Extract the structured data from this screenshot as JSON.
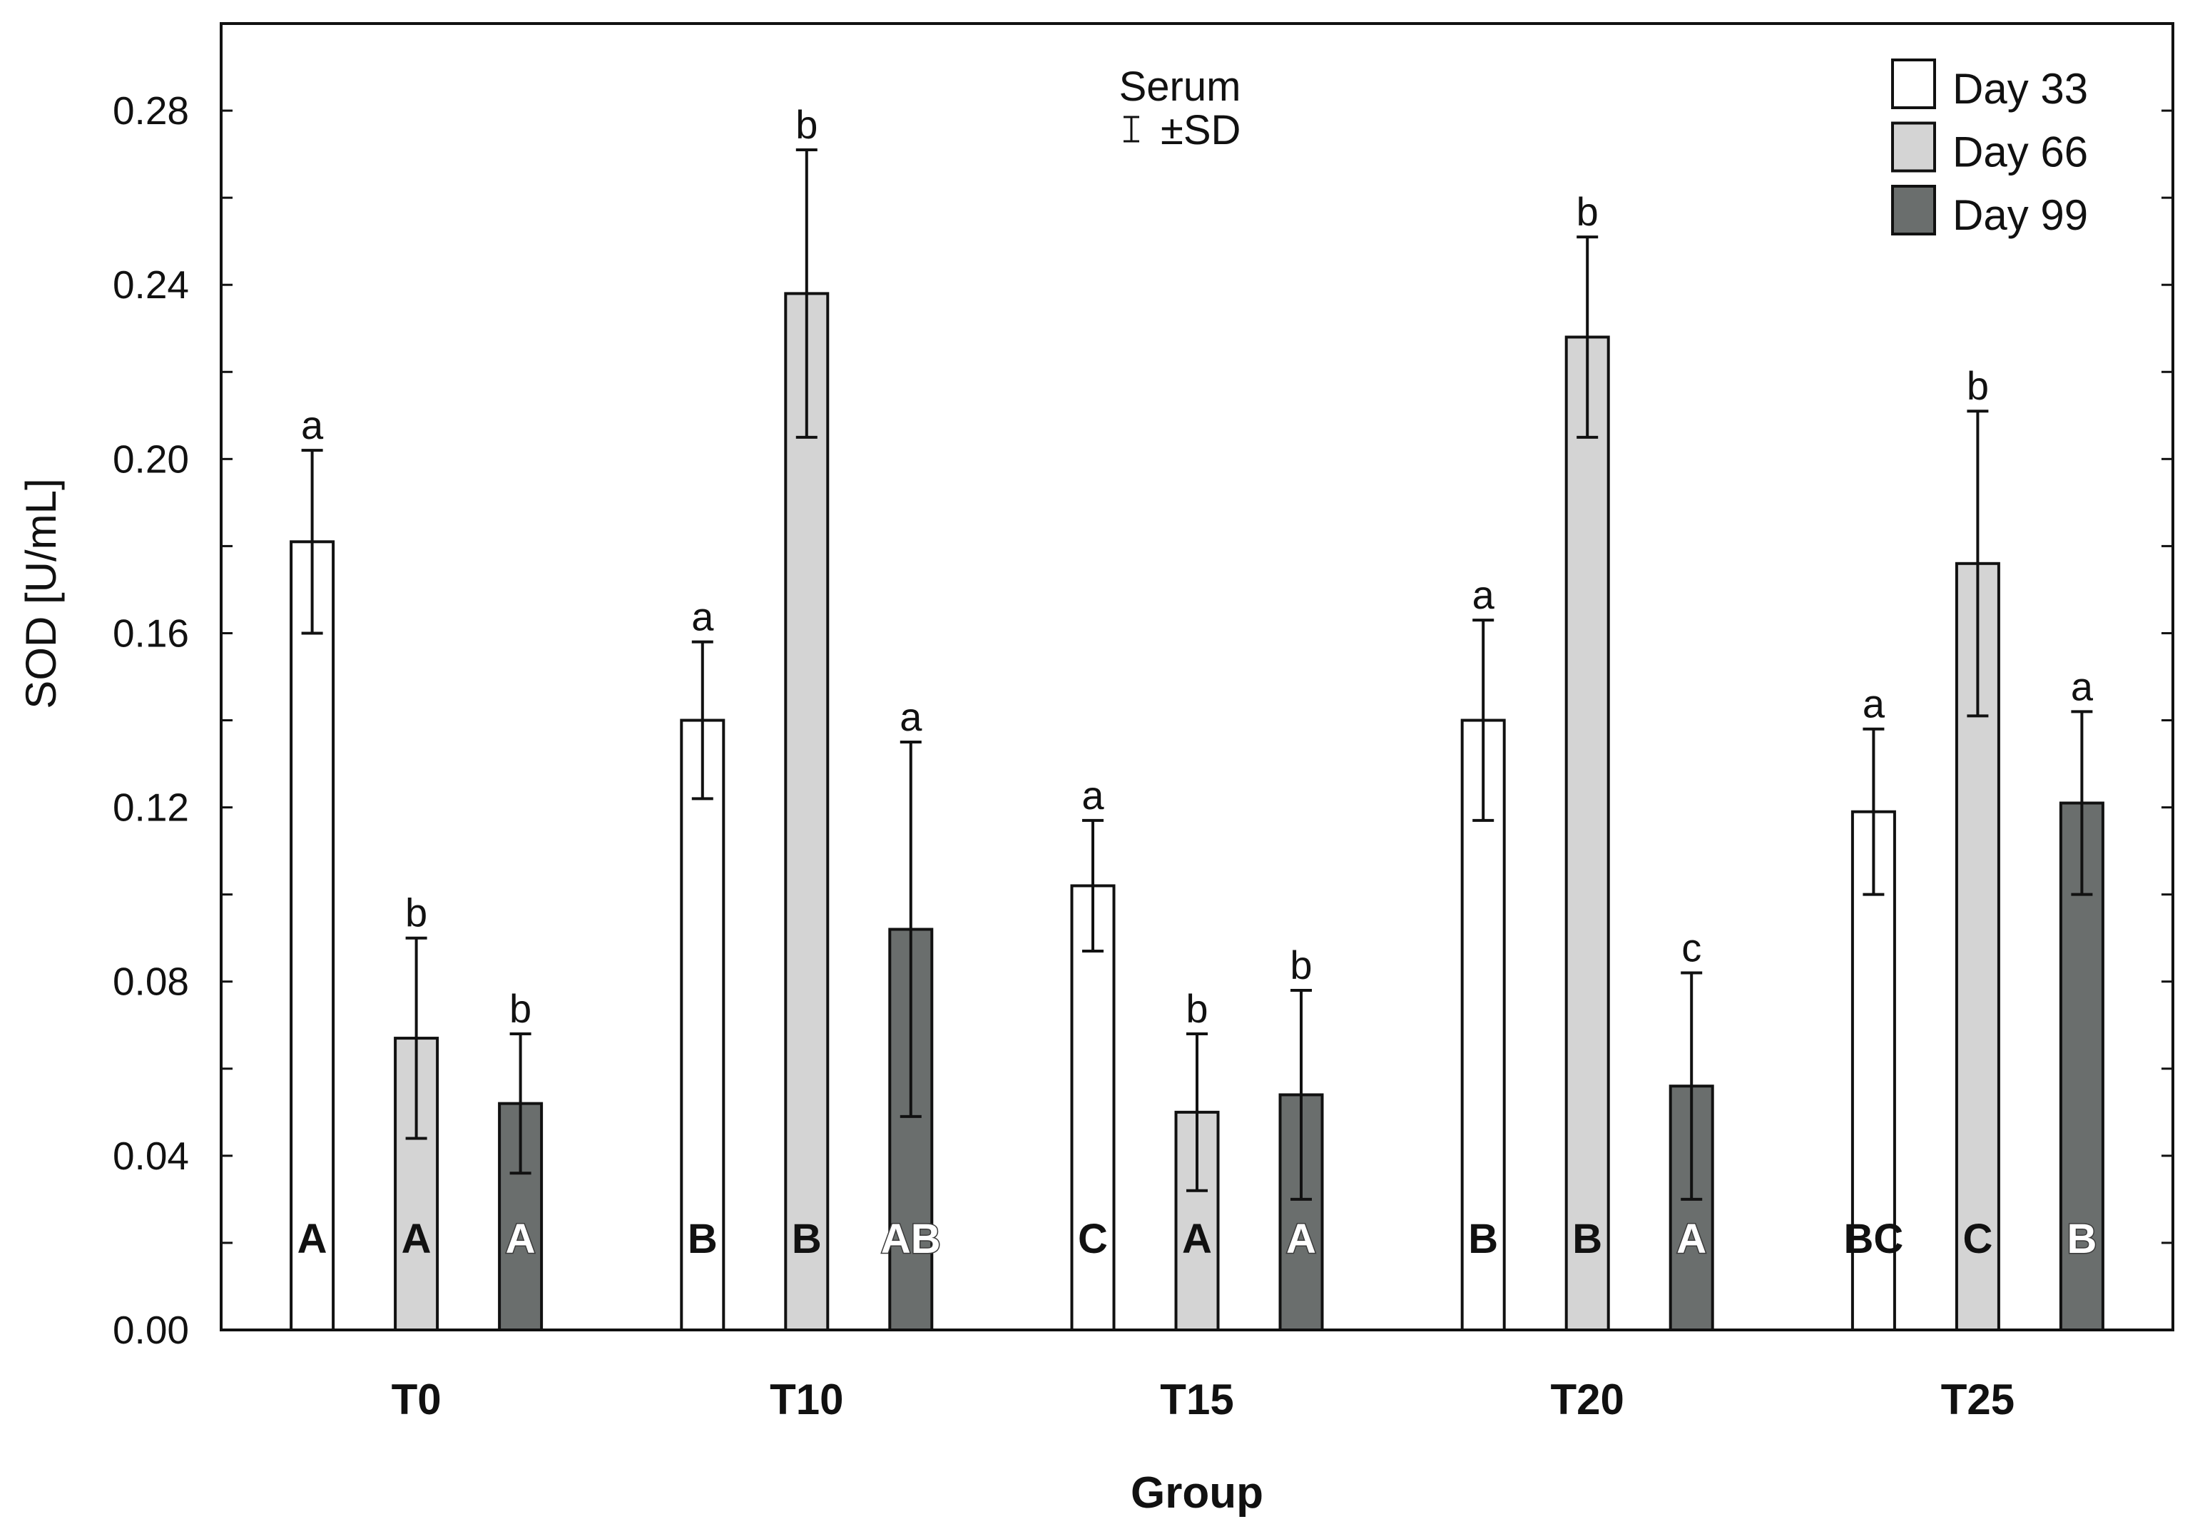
{
  "chart_data": {
    "type": "bar",
    "title": "Serum",
    "error_legend": "±SD",
    "xlabel": "Group",
    "ylabel": "SOD [U/mL]",
    "ylim": [
      0,
      0.3
    ],
    "yticks": [
      0.0,
      0.04,
      0.08,
      0.12,
      0.16,
      0.2,
      0.24,
      0.28
    ],
    "ytick_labels": [
      "0.00",
      "0.04",
      "0.08",
      "0.12",
      "0.16",
      "0.20",
      "0.24",
      "0.28"
    ],
    "grid": false,
    "legend_position": "top-right",
    "categories": [
      "T0",
      "T10",
      "T15",
      "T20",
      "T25"
    ],
    "series": [
      {
        "name": "Day 33",
        "color": "#ffffff",
        "label_color": "#111111",
        "values": [
          0.181,
          0.14,
          0.102,
          0.14,
          0.119
        ],
        "sd": [
          0.021,
          0.018,
          0.015,
          0.023,
          0.019
        ],
        "letters": [
          "a",
          "a",
          "a",
          "a",
          "a"
        ],
        "group_letters": [
          "A",
          "B",
          "C",
          "B",
          "BC"
        ]
      },
      {
        "name": "Day 66",
        "color": "#d4d4d4",
        "label_color": "#111111",
        "values": [
          0.067,
          0.238,
          0.05,
          0.228,
          0.176
        ],
        "sd": [
          0.023,
          0.033,
          0.018,
          0.023,
          0.035
        ],
        "letters": [
          "b",
          "b",
          "b",
          "b",
          "b"
        ],
        "group_letters": [
          "A",
          "B",
          "A",
          "B",
          "C"
        ]
      },
      {
        "name": "Day 99",
        "color": "#6a6e6d",
        "label_color": "#ffffff",
        "values": [
          0.052,
          0.092,
          0.054,
          0.056,
          0.121
        ],
        "sd": [
          0.016,
          0.043,
          0.024,
          0.026,
          0.021
        ],
        "letters": [
          "b",
          "a",
          "b",
          "c",
          "a"
        ],
        "group_letters": [
          "A",
          "AB",
          "A",
          "A",
          "B"
        ]
      }
    ]
  }
}
